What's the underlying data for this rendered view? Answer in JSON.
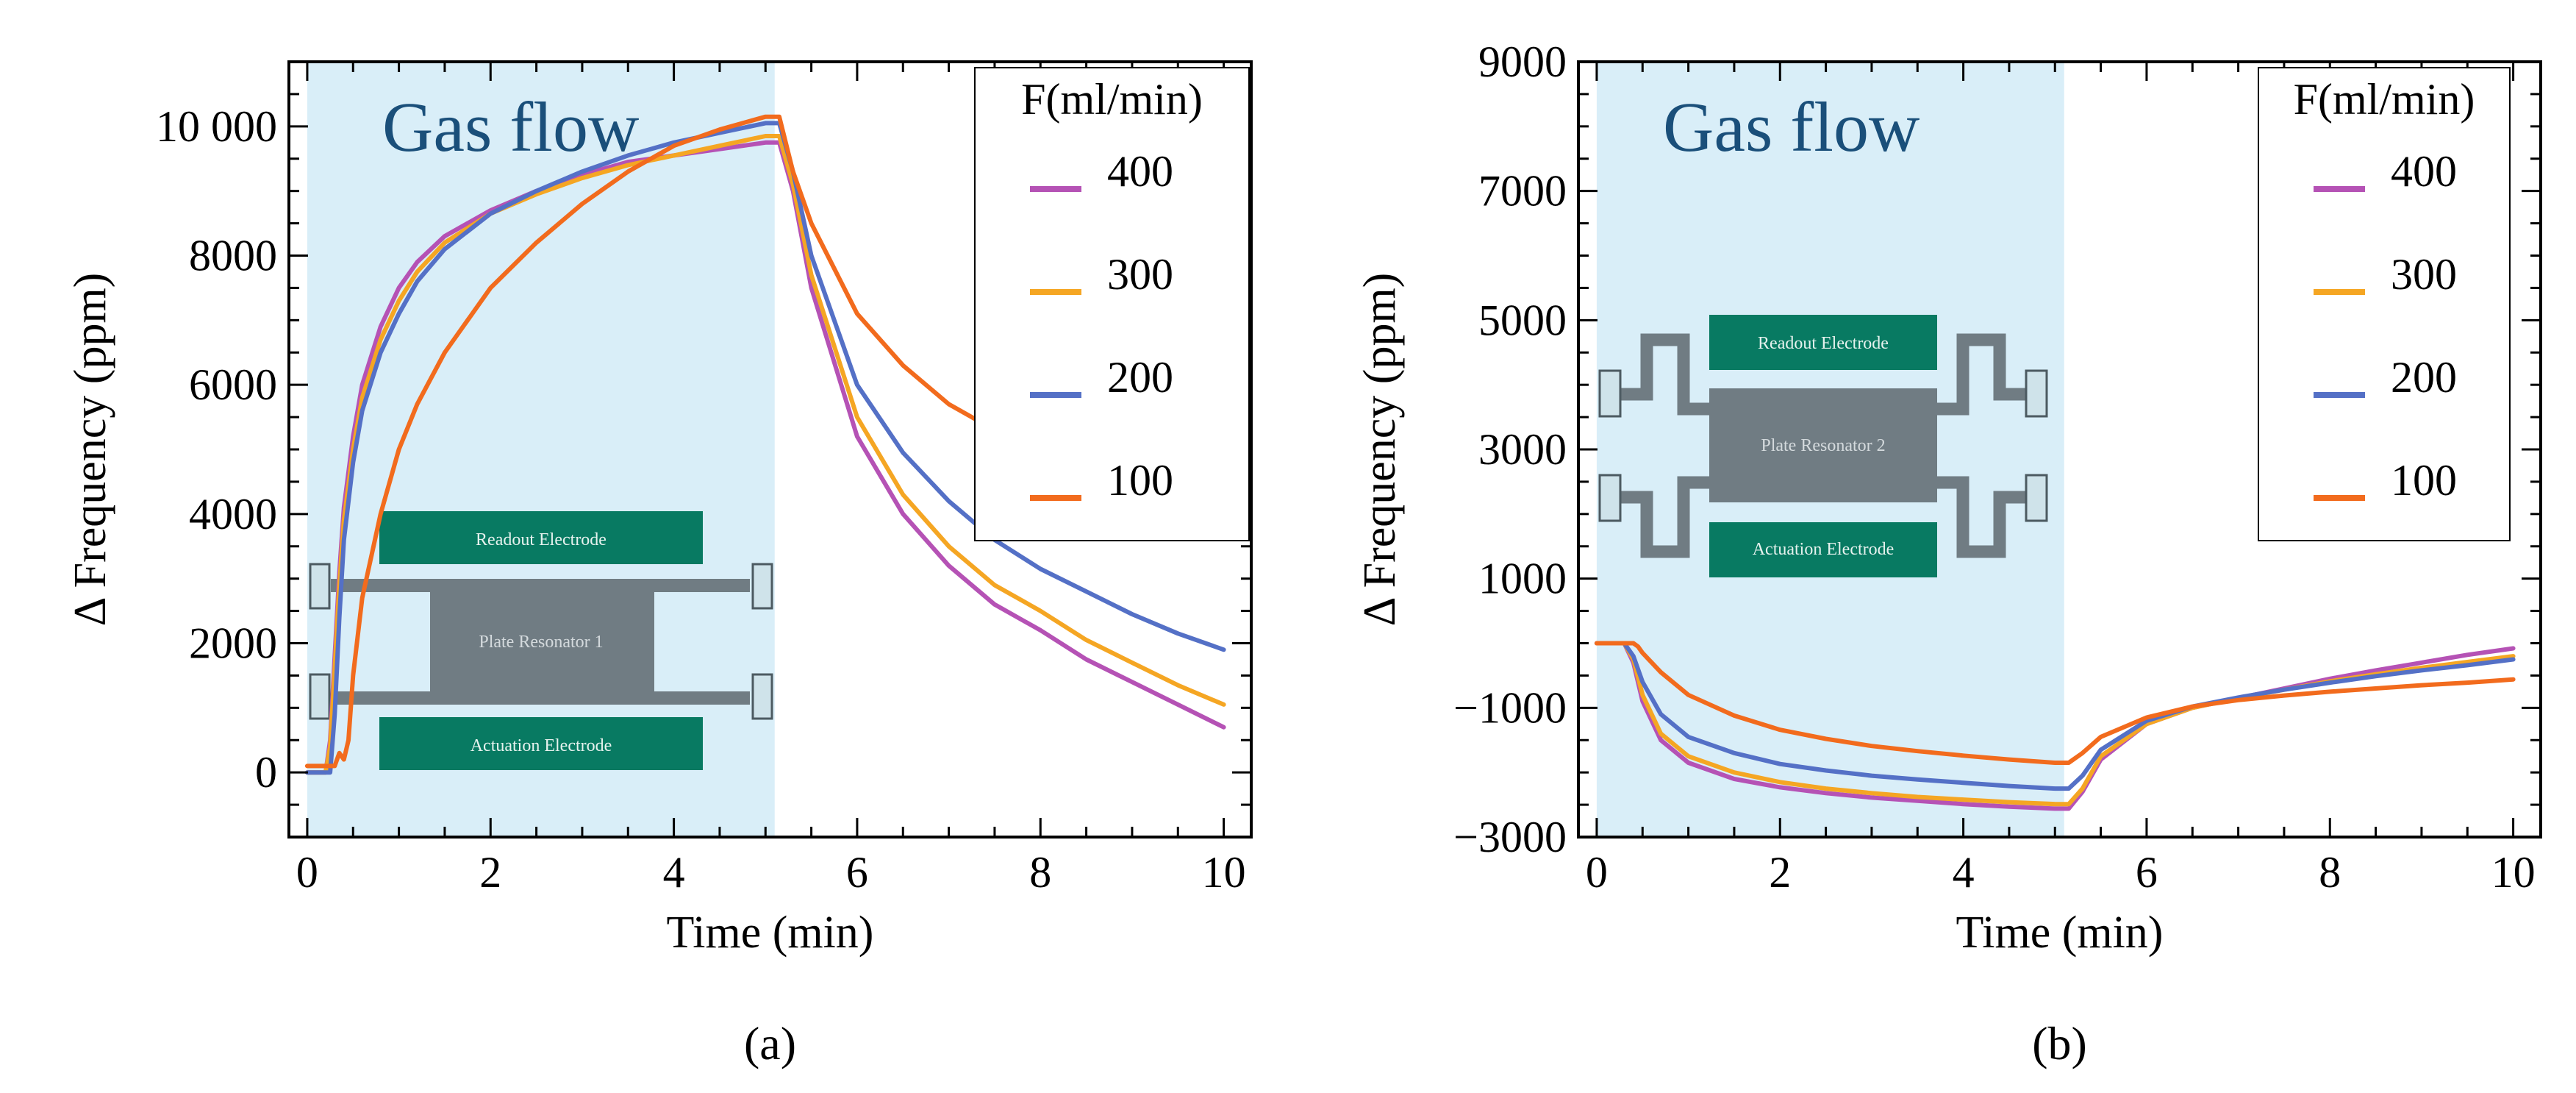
{
  "chart_data": [
    {
      "type": "line",
      "panel_label": "(a)",
      "annotation": "Gas flow",
      "gas_flow_range": [
        0,
        5.1
      ],
      "xlabel": "Time (min)",
      "ylabel": "Δ Frequency (ppm)",
      "xlim": [
        -0.2,
        10.3
      ],
      "ylim": [
        -1000,
        11000
      ],
      "xticks": [
        0,
        2,
        4,
        6,
        8,
        10
      ],
      "yticks": [
        0,
        2000,
        4000,
        6000,
        8000,
        10000
      ],
      "ytick_labels": [
        "0",
        "2000",
        "4000",
        "6000",
        "8000",
        "10 000"
      ],
      "legend_title": "F(ml/min)",
      "legend_position": "top-right",
      "inset": {
        "top_label": "Readout Electrode",
        "middle_label": "Plate Resonator 1",
        "bottom_label": "Actuation Electrode"
      },
      "series": [
        {
          "name": "400",
          "color": "#b552b5",
          "x": [
            0,
            0.2,
            0.25,
            0.3,
            0.35,
            0.4,
            0.5,
            0.6,
            0.8,
            1.0,
            1.2,
            1.5,
            2.0,
            2.5,
            3.0,
            3.5,
            4.0,
            4.5,
            5.0,
            5.15,
            5.3,
            5.5,
            6.0,
            6.5,
            7.0,
            7.5,
            8.0,
            8.5,
            9.0,
            9.5,
            10.0
          ],
          "y": [
            0,
            0,
            500,
            1800,
            3100,
            4100,
            5200,
            6000,
            6900,
            7500,
            7900,
            8300,
            8700,
            9000,
            9250,
            9450,
            9550,
            9650,
            9750,
            9750,
            9000,
            7500,
            5200,
            4000,
            3200,
            2600,
            2200,
            1750,
            1400,
            1050,
            700
          ]
        },
        {
          "name": "300",
          "color": "#f5a623",
          "x": [
            0,
            0.2,
            0.25,
            0.3,
            0.35,
            0.4,
            0.5,
            0.6,
            0.8,
            1.0,
            1.2,
            1.5,
            2.0,
            2.5,
            3.0,
            3.5,
            4.0,
            4.5,
            5.0,
            5.15,
            5.3,
            5.5,
            6.0,
            6.5,
            7.0,
            7.5,
            8.0,
            8.5,
            9.0,
            9.5,
            10.0
          ],
          "y": [
            0,
            0,
            400,
            1600,
            2900,
            3900,
            5000,
            5800,
            6700,
            7300,
            7750,
            8200,
            8650,
            8950,
            9200,
            9400,
            9550,
            9700,
            9850,
            9850,
            9100,
            7700,
            5500,
            4300,
            3500,
            2900,
            2500,
            2050,
            1700,
            1350,
            1050
          ]
        },
        {
          "name": "200",
          "color": "#5470c6",
          "x": [
            0,
            0.25,
            0.3,
            0.35,
            0.4,
            0.5,
            0.6,
            0.8,
            1.0,
            1.2,
            1.5,
            2.0,
            2.5,
            3.0,
            3.5,
            4.0,
            4.5,
            5.0,
            5.15,
            5.3,
            5.5,
            6.0,
            6.5,
            7.0,
            7.5,
            8.0,
            8.5,
            9.0,
            9.5,
            10.0
          ],
          "y": [
            0,
            0,
            900,
            2400,
            3600,
            4800,
            5600,
            6500,
            7100,
            7600,
            8100,
            8650,
            9000,
            9300,
            9550,
            9750,
            9900,
            10050,
            10050,
            9300,
            8000,
            6000,
            4950,
            4200,
            3600,
            3150,
            2800,
            2450,
            2150,
            1900
          ]
        },
        {
          "name": "100",
          "color": "#f26b1d",
          "x": [
            0,
            0.3,
            0.35,
            0.4,
            0.45,
            0.5,
            0.6,
            0.8,
            1.0,
            1.2,
            1.5,
            2.0,
            2.5,
            3.0,
            3.5,
            4.0,
            4.5,
            5.0,
            5.15,
            5.3,
            5.5,
            6.0,
            6.5,
            7.0,
            7.5,
            8.0,
            8.5,
            9.0,
            9.5,
            10.0
          ],
          "y": [
            100,
            100,
            300,
            200,
            500,
            1500,
            2700,
            4000,
            5000,
            5700,
            6500,
            7500,
            8200,
            8800,
            9300,
            9700,
            9950,
            10150,
            10150,
            9300,
            8500,
            7100,
            6300,
            5700,
            5300,
            4900,
            4600,
            4350,
            4100,
            3800
          ]
        }
      ]
    },
    {
      "type": "line",
      "panel_label": "(b)",
      "annotation": "Gas flow",
      "gas_flow_range": [
        0,
        5.1
      ],
      "xlabel": "Time (min)",
      "ylabel": "Δ Frequency (ppm)",
      "xlim": [
        -0.2,
        10.3
      ],
      "ylim": [
        -3000,
        9000
      ],
      "xticks": [
        0,
        2,
        4,
        6,
        8,
        10
      ],
      "yticks": [
        -3000,
        -1000,
        1000,
        3000,
        5000,
        7000,
        9000
      ],
      "ytick_labels": [
        "−3000",
        "−1000",
        "1000",
        "3000",
        "5000",
        "7000",
        "9000"
      ],
      "legend_title": "F(ml/min)",
      "legend_position": "top-right",
      "inset": {
        "top_label": "Readout Electrode",
        "middle_label": "Plate Resonator 2",
        "bottom_label": "Actuation Electrode"
      },
      "series": [
        {
          "name": "400",
          "color": "#b552b5",
          "x": [
            0,
            0.3,
            0.4,
            0.5,
            0.7,
            1.0,
            1.5,
            2.0,
            2.5,
            3.0,
            3.5,
            4.0,
            4.5,
            5.0,
            5.15,
            5.3,
            5.5,
            6.0,
            6.5,
            7.0,
            7.5,
            8.0,
            8.5,
            9.0,
            9.5,
            10.0
          ],
          "y": [
            0,
            0,
            -300,
            -900,
            -1500,
            -1850,
            -2100,
            -2230,
            -2320,
            -2390,
            -2440,
            -2490,
            -2530,
            -2560,
            -2560,
            -2300,
            -1800,
            -1250,
            -1000,
            -850,
            -700,
            -550,
            -420,
            -300,
            -180,
            -80
          ]
        },
        {
          "name": "300",
          "color": "#f5a623",
          "x": [
            0,
            0.3,
            0.4,
            0.5,
            0.7,
            1.0,
            1.5,
            2.0,
            2.5,
            3.0,
            3.5,
            4.0,
            4.5,
            5.0,
            5.15,
            5.3,
            5.5,
            6.0,
            6.5,
            7.0,
            7.5,
            8.0,
            8.5,
            9.0,
            9.5,
            10.0
          ],
          "y": [
            0,
            0,
            -250,
            -800,
            -1400,
            -1750,
            -2000,
            -2150,
            -2250,
            -2320,
            -2380,
            -2420,
            -2460,
            -2490,
            -2490,
            -2250,
            -1750,
            -1250,
            -1000,
            -850,
            -720,
            -590,
            -480,
            -380,
            -290,
            -200
          ]
        },
        {
          "name": "200",
          "color": "#5470c6",
          "x": [
            0,
            0.3,
            0.4,
            0.5,
            0.7,
            1.0,
            1.5,
            2.0,
            2.5,
            3.0,
            3.5,
            4.0,
            4.5,
            5.0,
            5.15,
            5.3,
            5.5,
            6.0,
            6.5,
            7.0,
            7.5,
            8.0,
            8.5,
            9.0,
            9.5,
            10.0
          ],
          "y": [
            0,
            0,
            -200,
            -600,
            -1100,
            -1450,
            -1700,
            -1870,
            -1970,
            -2050,
            -2110,
            -2160,
            -2210,
            -2250,
            -2250,
            -2050,
            -1650,
            -1200,
            -980,
            -840,
            -720,
            -610,
            -510,
            -420,
            -340,
            -250
          ]
        },
        {
          "name": "100",
          "color": "#f26b1d",
          "x": [
            0,
            0.35,
            0.4,
            0.45,
            0.5,
            0.7,
            1.0,
            1.5,
            2.0,
            2.5,
            3.0,
            3.5,
            4.0,
            4.5,
            5.0,
            5.15,
            5.3,
            5.5,
            6.0,
            6.5,
            7.0,
            7.5,
            8.0,
            8.5,
            9.0,
            9.5,
            10.0
          ],
          "y": [
            0,
            0,
            0,
            -50,
            -150,
            -450,
            -800,
            -1120,
            -1340,
            -1480,
            -1590,
            -1670,
            -1740,
            -1800,
            -1850,
            -1850,
            -1700,
            -1450,
            -1150,
            -980,
            -880,
            -810,
            -750,
            -700,
            -650,
            -610,
            -560
          ]
        }
      ]
    }
  ]
}
